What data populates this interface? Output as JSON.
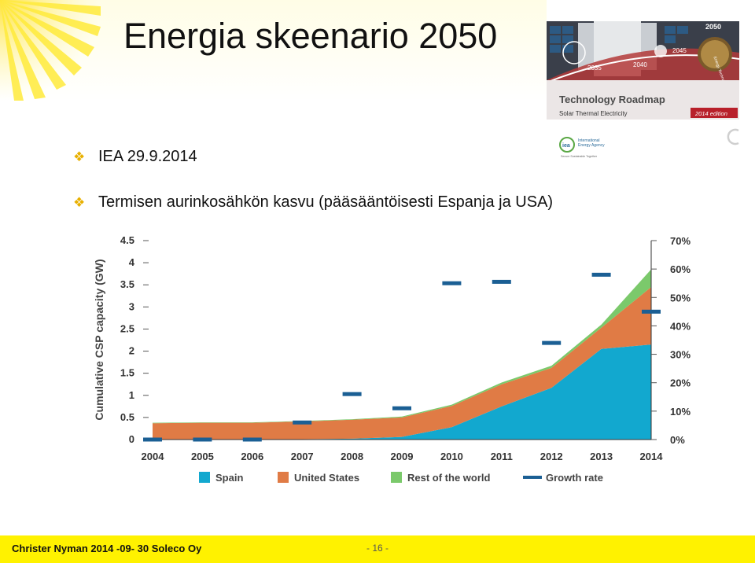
{
  "slide": {
    "title": "Energia skeenario 2050",
    "bullets": [
      "IEA 29.9.2014",
      "Termisen aurinkosähkön kasvu (pääsääntöisesti Espanja ja USA)"
    ],
    "footer_left": "Christer Nyman 2014 -09- 30 Soleco Oy",
    "footer_page": "- 16 -"
  },
  "cover": {
    "title": "Technology Roadmap",
    "subtitle": "Solar Thermal Electricity",
    "edition": "2014 edition",
    "year_top": "2050",
    "years": [
      "2035",
      "2040",
      "2045"
    ],
    "side_text": "Energy Technology Perspectives",
    "org_line1": "International",
    "org_line2": "Energy Agency",
    "org_tagline": "Secure Sustainable Together",
    "org_abbr": "iea",
    "colors": {
      "accent_red": "#c0392b",
      "band": "#e8e0e0"
    }
  },
  "chart_data": {
    "type": "area",
    "categories": [
      "2004",
      "2005",
      "2006",
      "2007",
      "2008",
      "2009",
      "2010",
      "2011",
      "2012",
      "2013",
      "2014"
    ],
    "ylabel": "Cumulative CSP capacity (GW)",
    "ylim": [
      0,
      4.5
    ],
    "yticks": [
      "0",
      "0.5",
      "1",
      "1.5",
      "2",
      "2.5",
      "3",
      "3.5",
      "4",
      "4.5"
    ],
    "y2lim": [
      0,
      70
    ],
    "y2ticks": [
      "0%",
      "10%",
      "20%",
      "30%",
      "40%",
      "50%",
      "60%",
      "70%"
    ],
    "series": [
      {
        "name": "Spain",
        "kind": "area",
        "color": "#12a8cf",
        "values": [
          0.01,
          0.01,
          0.01,
          0.01,
          0.02,
          0.06,
          0.28,
          0.75,
          1.17,
          2.05,
          2.15
        ]
      },
      {
        "name": "United States",
        "kind": "area",
        "color": "#e07b45",
        "values": [
          0.36,
          0.37,
          0.37,
          0.4,
          0.43,
          0.44,
          0.48,
          0.5,
          0.45,
          0.48,
          1.3
        ]
      },
      {
        "name": "Rest of the world",
        "kind": "area",
        "color": "#7bc96b",
        "values": [
          0.01,
          0.01,
          0.01,
          0.01,
          0.01,
          0.02,
          0.03,
          0.04,
          0.05,
          0.07,
          0.4
        ]
      },
      {
        "name": "Growth rate",
        "kind": "marker",
        "color": "#1b5f94",
        "values": [
          0,
          0,
          0,
          6,
          16,
          11,
          55,
          55.5,
          34,
          58,
          45
        ]
      }
    ],
    "legend_position": "bottom",
    "grid": false
  }
}
